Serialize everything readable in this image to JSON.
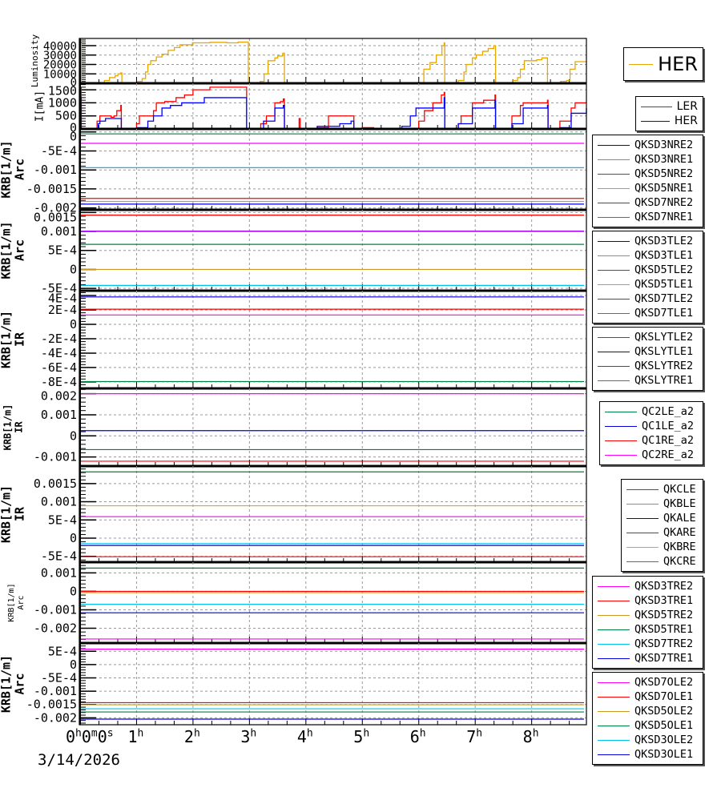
{
  "x_axis": {
    "tick_labels": [
      "0h0m0s",
      "1h",
      "2h",
      "3h",
      "4h",
      "5h",
      "6h",
      "7h",
      "8h"
    ],
    "date": "3/14/2026",
    "xlim_hours": [
      0,
      8.97
    ]
  },
  "chart_data": [
    {
      "type": "line",
      "ylabel": [
        "Luminosity"
      ],
      "ylim": [
        0,
        47700
      ],
      "yticks": [
        0,
        10000,
        20000,
        30000,
        40000
      ],
      "ytick_labels": [
        "0",
        "10000",
        "20000",
        "30000",
        "40000"
      ],
      "series": [
        {
          "name": "HER",
          "color": "#e6a800",
          "step": true,
          "points": [
            [
              0,
              43000
            ],
            [
              0.02,
              0
            ],
            [
              0.43,
              3000
            ],
            [
              0.52,
              6000
            ],
            [
              0.62,
              8000
            ],
            [
              0.67,
              10000
            ],
            [
              0.72,
              11000
            ],
            [
              0.74,
              0
            ],
            [
              1.02,
              2000
            ],
            [
              1.1,
              5000
            ],
            [
              1.16,
              12000
            ],
            [
              1.2,
              20000
            ],
            [
              1.25,
              24000
            ],
            [
              1.35,
              28000
            ],
            [
              1.45,
              31000
            ],
            [
              1.56,
              35000
            ],
            [
              1.67,
              38000
            ],
            [
              1.77,
              41000
            ],
            [
              1.99,
              43000
            ],
            [
              2.3,
              43500
            ],
            [
              2.6,
              43000
            ],
            [
              2.8,
              43800
            ],
            [
              2.98,
              0
            ],
            [
              3.19,
              2000
            ],
            [
              3.26,
              10000
            ],
            [
              3.33,
              24000
            ],
            [
              3.45,
              27000
            ],
            [
              3.5,
              29000
            ],
            [
              3.59,
              32000
            ],
            [
              3.62,
              0
            ],
            [
              3.83,
              600
            ],
            [
              3.86,
              0
            ],
            [
              6.09,
              15000
            ],
            [
              6.2,
              22000
            ],
            [
              6.31,
              30000
            ],
            [
              6.41,
              40000
            ],
            [
              6.45,
              43000
            ],
            [
              6.46,
              0
            ],
            [
              6.7,
              3000
            ],
            [
              6.8,
              12000
            ],
            [
              6.84,
              20000
            ],
            [
              6.95,
              27000
            ],
            [
              7.02,
              30000
            ],
            [
              7.13,
              34000
            ],
            [
              7.23,
              37000
            ],
            [
              7.33,
              40000
            ],
            [
              7.36,
              0
            ],
            [
              7.66,
              3000
            ],
            [
              7.75,
              6000
            ],
            [
              7.8,
              15000
            ],
            [
              7.87,
              24000
            ],
            [
              8.09,
              25000
            ],
            [
              8.18,
              27000
            ],
            [
              8.28,
              0
            ],
            [
              8.51,
              2000
            ],
            [
              8.62,
              3000
            ],
            [
              8.68,
              15000
            ],
            [
              8.77,
              23000
            ],
            [
              8.97,
              23000
            ]
          ]
        }
      ],
      "legend": [
        "HER"
      ]
    },
    {
      "type": "line",
      "ylabel": [
        "I[mA]"
      ],
      "ylim": [
        0,
        1750
      ],
      "yticks": [
        0,
        500,
        1000,
        1500
      ],
      "ytick_labels": [
        "0",
        "500",
        "1000",
        "1500"
      ],
      "series": [
        {
          "name": "LER",
          "color": "#ff0000",
          "step": true,
          "points": [
            [
              0,
              1600
            ],
            [
              0.02,
              0
            ],
            [
              0.3,
              300
            ],
            [
              0.35,
              500
            ],
            [
              0.55,
              450
            ],
            [
              0.6,
              500
            ],
            [
              0.65,
              700
            ],
            [
              0.72,
              900
            ],
            [
              0.73,
              0
            ],
            [
              1.0,
              200
            ],
            [
              1.05,
              500
            ],
            [
              1.3,
              700
            ],
            [
              1.35,
              1000
            ],
            [
              1.5,
              1050
            ],
            [
              1.7,
              1200
            ],
            [
              1.85,
              1300
            ],
            [
              2.0,
              1500
            ],
            [
              2.3,
              1600
            ],
            [
              2.95,
              0
            ],
            [
              3.2,
              200
            ],
            [
              3.3,
              500
            ],
            [
              3.45,
              1000
            ],
            [
              3.55,
              1050
            ],
            [
              3.6,
              1150
            ],
            [
              3.62,
              0
            ],
            [
              3.88,
              400
            ],
            [
              3.9,
              0
            ],
            [
              4.2,
              50
            ],
            [
              4.4,
              500
            ],
            [
              4.85,
              0
            ],
            [
              5.0,
              50
            ],
            [
              5.2,
              0
            ],
            [
              6.0,
              300
            ],
            [
              6.1,
              700
            ],
            [
              6.25,
              1000
            ],
            [
              6.4,
              1300
            ],
            [
              6.45,
              1400
            ],
            [
              6.46,
              0
            ],
            [
              6.7,
              200
            ],
            [
              6.75,
              500
            ],
            [
              6.95,
              1000
            ],
            [
              7.15,
              1100
            ],
            [
              7.35,
              1300
            ],
            [
              7.36,
              0
            ],
            [
              7.65,
              500
            ],
            [
              7.8,
              900
            ],
            [
              7.85,
              1000
            ],
            [
              8.28,
              1100
            ],
            [
              8.29,
              0
            ],
            [
              8.5,
              300
            ],
            [
              8.7,
              800
            ],
            [
              8.77,
              1000
            ],
            [
              8.97,
              1000
            ]
          ]
        },
        {
          "name": "HER",
          "color": "#0000ff",
          "step": true,
          "points": [
            [
              0,
              1200
            ],
            [
              0.02,
              0
            ],
            [
              0.32,
              200
            ],
            [
              0.35,
              300
            ],
            [
              0.45,
              400
            ],
            [
              0.73,
              0
            ],
            [
              1.0,
              50
            ],
            [
              1.2,
              300
            ],
            [
              1.3,
              500
            ],
            [
              1.45,
              800
            ],
            [
              1.6,
              900
            ],
            [
              1.8,
              1000
            ],
            [
              2.2,
              1200
            ],
            [
              2.95,
              0
            ],
            [
              3.25,
              300
            ],
            [
              3.45,
              800
            ],
            [
              3.6,
              900
            ],
            [
              3.62,
              0
            ],
            [
              4.2,
              100
            ],
            [
              4.6,
              200
            ],
            [
              4.8,
              300
            ],
            [
              4.85,
              0
            ],
            [
              5.7,
              100
            ],
            [
              5.85,
              500
            ],
            [
              5.95,
              800
            ],
            [
              6.35,
              800
            ],
            [
              6.45,
              1200
            ],
            [
              6.46,
              0
            ],
            [
              6.7,
              200
            ],
            [
              6.95,
              800
            ],
            [
              7.35,
              1100
            ],
            [
              7.36,
              0
            ],
            [
              7.65,
              200
            ],
            [
              7.85,
              800
            ],
            [
              8.28,
              900
            ],
            [
              8.29,
              0
            ],
            [
              8.5,
              50
            ],
            [
              8.7,
              600
            ],
            [
              8.97,
              800
            ]
          ]
        }
      ],
      "legend": [
        "LER",
        "HER"
      ]
    },
    {
      "type": "line",
      "ylabel": [
        "KRB[1/m]",
        "Arc"
      ],
      "ylim": [
        -0.00205,
        8e-05
      ],
      "yticks": [
        0,
        -0.0005,
        -0.001,
        -0.0015,
        -0.002
      ],
      "ytick_labels": [
        "0",
        "-5E-4",
        "-0.001",
        "-0.0015",
        "-0.002"
      ],
      "series": [
        {
          "name": "QKSD3NRE2",
          "color": "#0000dd",
          "value": -0.0019
        },
        {
          "name": "QKSD3NRE1",
          "color": "#1eaee6",
          "value": -0.00094
        },
        {
          "name": "QKSD5NRE2",
          "color": "#008040",
          "value": -5e-05
        },
        {
          "name": "QKSD5NRE1",
          "color": "#cc9a22",
          "value": -0.00183
        },
        {
          "name": "QKSD7NRE2",
          "color": "#ff0000",
          "value": -0.00175
        },
        {
          "name": "QKSD7NRE1",
          "color": "#ff00ff",
          "value": -0.0003
        }
      ]
    },
    {
      "type": "line",
      "ylabel": [
        "KRB[1/m]",
        "Arc"
      ],
      "ylim": [
        -0.00056,
        0.00157
      ],
      "yticks": [
        0.0015,
        0.001,
        0.0005,
        0,
        -0.0005
      ],
      "ytick_labels": [
        "0.0015",
        "0.001",
        "5E-4",
        "0",
        "-5E-4"
      ],
      "series": [
        {
          "name": "QKSD3TLE2",
          "color": "#0000dd",
          "value": 0.00101
        },
        {
          "name": "QKSD3TLE1",
          "color": "#00c0f0",
          "value": -0.00042
        },
        {
          "name": "QKSD5TLE2",
          "color": "#008040",
          "value": 0.00066
        },
        {
          "name": "QKSD5TLE1",
          "color": "#cc9a22",
          "value": 0
        },
        {
          "name": "QKSD7TLE2",
          "color": "#ff0000",
          "value": 0.00143
        },
        {
          "name": "QKSD7TLE1",
          "color": "#ff00ff",
          "value": 0.001
        }
      ]
    },
    {
      "type": "line",
      "ylabel": [
        "KRB[1/m]",
        "IR"
      ],
      "ylim": [
        -0.00089,
        0.000467
      ],
      "yticks": [
        0.0004,
        0.0002,
        0,
        -0.0002,
        -0.0004,
        -0.0006,
        -0.0008
      ],
      "ytick_labels": [
        "4E-4",
        "2E-4",
        "0",
        "-2E-4",
        "-4E-4",
        "-6E-4",
        "-8E-4"
      ],
      "series": [
        {
          "name": "QKSLYTLE2",
          "color": "#008040",
          "value": -0.000795
        },
        {
          "name": "QKSLYTLE1",
          "color": "#0000dd",
          "value": 0.00038
        },
        {
          "name": "QKSLYTRE2",
          "color": "#ff0000",
          "value": 0.00021
        },
        {
          "name": "QKSLYTRE1",
          "color": "#ff00ff",
          "value": 0.00013
        }
      ]
    },
    {
      "type": "line",
      "ylabel": [
        "KRB[1/m]",
        "IR"
      ],
      "ylim": [
        -0.00143,
        0.00225
      ],
      "yticks": [
        0.002,
        0.001,
        0,
        -0.001
      ],
      "ytick_labels": [
        "0.002",
        "0.001",
        "0",
        "-0.001"
      ],
      "series": [
        {
          "name": "QC2LE_a2",
          "color": "#008040",
          "value": -0.00065
        },
        {
          "name": "QC1LE_a2",
          "color": "#0000dd",
          "value": 0.00025
        },
        {
          "name": "QC1RE_a2",
          "color": "#ff0000",
          "value": -0.0012
        },
        {
          "name": "QC2RE_a2",
          "color": "#ff00ff",
          "value": 0.002
        }
      ]
    },
    {
      "type": "line",
      "ylabel": [
        "KRB[1/m]",
        "IR"
      ],
      "ylim": [
        -0.00066,
        0.00198
      ],
      "yticks": [
        0.0015,
        0.001,
        0.0005,
        0,
        -0.0005
      ],
      "ytick_labels": [
        "0.0015",
        "0.001",
        "5E-4",
        "0",
        "-5E-4"
      ],
      "series": [
        {
          "name": "QKCLE",
          "color": "#008040",
          "value": 0.00182
        },
        {
          "name": "QKBLE",
          "color": "#00c0f0",
          "value": -0.00015
        },
        {
          "name": "QKALE",
          "color": "#0000dd",
          "value": -0.0002
        },
        {
          "name": "QKARE",
          "color": "#ff0000",
          "value": -0.00051
        },
        {
          "name": "QKBRE",
          "color": "#e6a800",
          "value": 0.00089
        },
        {
          "name": "QKCRE",
          "color": "#ff00ff",
          "value": 0.00059
        }
      ]
    },
    {
      "type": "line",
      "ylabel": [
        "KRB[1/m]",
        "Arc"
      ],
      "ylim": [
        -0.0028,
        0.00158
      ],
      "yticks": [
        0.001,
        0,
        -0.001,
        -0.002
      ],
      "ytick_labels": [
        "0.001",
        "0",
        "-0.001",
        "-0.002"
      ],
      "series": [
        {
          "name": "QKSD3TRE2",
          "color": "#ff00ff",
          "value": -0.00258
        },
        {
          "name": "QKSD3TRE1",
          "color": "#ff0000",
          "value": 0
        },
        {
          "name": "QKSD5TRE2",
          "color": "#cc9a22",
          "value": -7e-05
        },
        {
          "name": "QKSD5TRE1",
          "color": "#008040",
          "value": 0.00126
        },
        {
          "name": "QKSD7TRE2",
          "color": "#00c0f0",
          "value": -0.0007
        },
        {
          "name": "QKSD7TRE1",
          "color": "#0000dd",
          "value": -0.00116
        }
      ]
    },
    {
      "type": "line",
      "ylabel": [
        "KRB[1/m]",
        "Arc"
      ],
      "ylim": [
        -0.00226,
        0.00081
      ],
      "yticks": [
        0.0005,
        0,
        -0.0005,
        -0.001,
        -0.0015,
        -0.002
      ],
      "ytick_labels": [
        "5E-4",
        "0",
        "-5E-4",
        "-0.001",
        "-0.0015",
        "-0.002"
      ],
      "series": [
        {
          "name": "QKSD7OLE2",
          "color": "#ff00ff",
          "value": 0.00058
        },
        {
          "name": "QKSD7OLE1",
          "color": "#ff0000",
          "value": -0.00143
        },
        {
          "name": "QKSD5OLE2",
          "color": "#cc9a22",
          "value": -0.00151
        },
        {
          "name": "QKSD5OLE1",
          "color": "#008040",
          "value": -0.00178
        },
        {
          "name": "QKSD3OLE2",
          "color": "#00c0f0",
          "value": -0.00166
        },
        {
          "name": "QKSD3OLE1",
          "color": "#0000dd",
          "value": -0.00205
        }
      ]
    }
  ]
}
